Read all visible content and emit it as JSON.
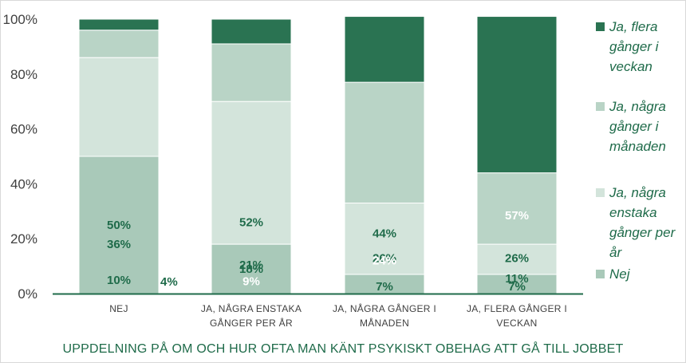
{
  "chart_data": {
    "type": "bar",
    "stacked": true,
    "percent_stacked": true,
    "categories": [
      [
        "NEJ"
      ],
      [
        "JA, NÅGRA ENSTAKA",
        "GÅNGER PER ÅR"
      ],
      [
        "JA, NÅGRA GÅNGER I",
        "MÅNADEN"
      ],
      [
        "JA, FLERA GÅNGER I",
        "VECKAN"
      ]
    ],
    "series": [
      {
        "name": "Nej",
        "values": [
          50,
          18,
          7,
          7
        ],
        "labels": [
          "50%",
          "18%",
          "7%",
          "7%"
        ],
        "color": "#a9c9b9"
      },
      {
        "name": "Ja, några enstaka gånger per år",
        "values": [
          36,
          52,
          26,
          11
        ],
        "labels": [
          "36%",
          "52%",
          "26%",
          "11%"
        ],
        "color": "#d3e4db"
      },
      {
        "name": "Ja, några gånger i månaden",
        "values": [
          10,
          21,
          44,
          26
        ],
        "labels": [
          "10%",
          "21%",
          "44%",
          "26%"
        ],
        "color": "#b9d4c6"
      },
      {
        "name": "Ja, flera gånger i veckan",
        "values": [
          4,
          9,
          24,
          57
        ],
        "labels": [
          "4%",
          "9%",
          "24%",
          "57%"
        ],
        "color": "#2a7352"
      }
    ],
    "legend": [
      {
        "lines": [
          "Ja, flera",
          "gånger i",
          "veckan"
        ],
        "color": "#2a7352"
      },
      {
        "lines": [
          "Ja, några",
          "gånger i",
          "månaden"
        ],
        "color": "#b9d4c6"
      },
      {
        "lines": [
          "Ja, några",
          "enstaka",
          "gånger per",
          "år"
        ],
        "color": "#d3e4db"
      },
      {
        "lines": [
          "Nej"
        ],
        "color": "#a9c9b9"
      }
    ],
    "legend_position": "right",
    "yticks": [
      "0%",
      "20%",
      "40%",
      "60%",
      "80%",
      "100%"
    ],
    "ylim": [
      0,
      100
    ],
    "xlabel": "UPPDELNING PÅ OM OCH HUR OFTA MAN KÄNT PSYKISKT OBEHAG ATT GÅ TILL JOBBET",
    "ylabel": "",
    "grid": false
  }
}
